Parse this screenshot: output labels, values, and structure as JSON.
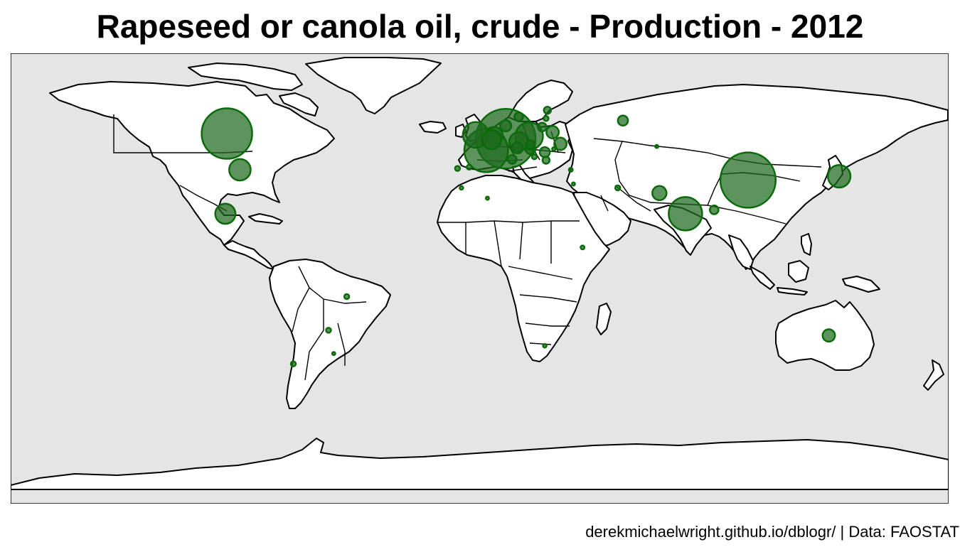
{
  "title": "Rapeseed or canola oil, crude - Production - 2012",
  "caption": "derekmichaelwright.github.io/dblogr/ | Data: FAOSTAT",
  "colors": {
    "ocean": "#e5e5e5",
    "land": "#ffffff",
    "bubble": "#1f6b1f",
    "bubble_stroke": "#0b6b0b"
  },
  "points": [
    {
      "name": "Canada",
      "lon": -97,
      "lat": 53,
      "value": 100
    },
    {
      "name": "United States",
      "lon": -92,
      "lat": 39,
      "value": 18
    },
    {
      "name": "Mexico",
      "lon": -97.6,
      "lat": 22,
      "value": 16
    },
    {
      "name": "Brazil",
      "lon": -51,
      "lat": -10,
      "value": 1
    },
    {
      "name": "Paraguay",
      "lon": -58,
      "lat": -23,
      "value": 1
    },
    {
      "name": "Uruguay",
      "lon": -56,
      "lat": -32,
      "value": 0.3
    },
    {
      "name": "Chile",
      "lon": -71.5,
      "lat": -36,
      "value": 1
    },
    {
      "name": "Germany",
      "lon": 10,
      "lat": 51,
      "value": 140
    },
    {
      "name": "France",
      "lon": 2.5,
      "lat": 46.5,
      "value": 75
    },
    {
      "name": "United Kingdom",
      "lon": -1.5,
      "lat": 52.5,
      "value": 26
    },
    {
      "name": "Poland",
      "lon": 19,
      "lat": 52,
      "value": 30
    },
    {
      "name": "Czech Republic",
      "lon": 15,
      "lat": 49.8,
      "value": 14
    },
    {
      "name": "Netherlands",
      "lon": 5.5,
      "lat": 52.2,
      "value": 12
    },
    {
      "name": "Belgium",
      "lon": 4.6,
      "lat": 50.6,
      "value": 14
    },
    {
      "name": "Austria",
      "lon": 14.5,
      "lat": 47.5,
      "value": 5
    },
    {
      "name": "Italy",
      "lon": 12.5,
      "lat": 43,
      "value": 3
    },
    {
      "name": "Spain",
      "lon": -4,
      "lat": 40,
      "value": 1
    },
    {
      "name": "Portugal",
      "lon": -8.5,
      "lat": 39.5,
      "value": 1
    },
    {
      "name": "Denmark",
      "lon": 10,
      "lat": 56,
      "value": 5
    },
    {
      "name": "Sweden",
      "lon": 15,
      "lat": 59.5,
      "value": 3
    },
    {
      "name": "Finland",
      "lon": 26,
      "lat": 62,
      "value": 2
    },
    {
      "name": "Estonia",
      "lon": 25.5,
      "lat": 58.8,
      "value": 1
    },
    {
      "name": "Lithuania",
      "lon": 24,
      "lat": 55.5,
      "value": 3
    },
    {
      "name": "Belarus",
      "lon": 28,
      "lat": 53.5,
      "value": 6
    },
    {
      "name": "Ukraine",
      "lon": 31,
      "lat": 49,
      "value": 6
    },
    {
      "name": "Hungary",
      "lon": 19.5,
      "lat": 47,
      "value": 4
    },
    {
      "name": "Slovakia",
      "lon": 19.5,
      "lat": 48.7,
      "value": 3
    },
    {
      "name": "Romania",
      "lon": 25,
      "lat": 45.8,
      "value": 4
    },
    {
      "name": "Bulgaria",
      "lon": 25.5,
      "lat": 42.7,
      "value": 2
    },
    {
      "name": "Serbia",
      "lon": 21,
      "lat": 44,
      "value": 1
    },
    {
      "name": "Moldova",
      "lon": 28.5,
      "lat": 47,
      "value": 0.5
    },
    {
      "name": "Russia",
      "lon": 55,
      "lat": 58,
      "value": 4
    },
    {
      "name": "Kazakhstan",
      "lon": 68,
      "lat": 48,
      "value": 0.3
    },
    {
      "name": "Turkey",
      "lon": 35,
      "lat": 39,
      "value": 0.6
    },
    {
      "name": "Syria",
      "lon": 36,
      "lat": 33.5,
      "value": 0.3
    },
    {
      "name": "Iran",
      "lon": 53,
      "lat": 32,
      "value": 1
    },
    {
      "name": "Pakistan",
      "lon": 69,
      "lat": 30,
      "value": 8
    },
    {
      "name": "India",
      "lon": 79,
      "lat": 22,
      "value": 44
    },
    {
      "name": "Bangladesh",
      "lon": 90,
      "lat": 23.5,
      "value": 3
    },
    {
      "name": "China",
      "lon": 103,
      "lat": 35,
      "value": 120
    },
    {
      "name": "Japan",
      "lon": 138,
      "lat": 36.5,
      "value": 20
    },
    {
      "name": "Australia",
      "lon": 134,
      "lat": -25,
      "value": 6
    },
    {
      "name": "Ethiopia",
      "lon": 39.5,
      "lat": 9,
      "value": 0.6
    },
    {
      "name": "South Africa",
      "lon": 25,
      "lat": -29,
      "value": 0.5
    },
    {
      "name": "Algeria",
      "lon": 3,
      "lat": 28,
      "value": 0.1
    },
    {
      "name": "Morocco",
      "lon": -7,
      "lat": 32,
      "value": 0.5
    }
  ]
}
